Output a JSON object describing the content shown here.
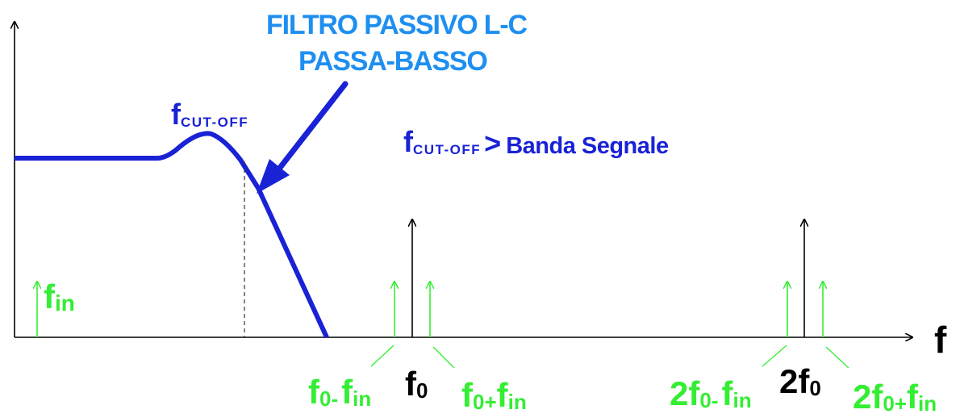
{
  "colors": {
    "axis": "#000000",
    "filter_curve": "#1a22d6",
    "title": "#1e8ff0",
    "harmonic": "#33ee33",
    "carrier": "#000000"
  },
  "title": {
    "line1": "FILTRO PASSIVO L-C",
    "line2": "PASSA-BASSO"
  },
  "axis": {
    "x_label": "f"
  },
  "cutoff_label": {
    "main": "f",
    "sub": "CUT-OFF"
  },
  "condition": {
    "main": "f",
    "sub": "CUT-OFF",
    "rel": ">",
    "text": "Banda Segnale"
  },
  "signal": {
    "main": "f",
    "sub": "in"
  },
  "spectrum_labels": {
    "f0_minus": {
      "a": "f",
      "a_sub": "0-",
      "b": "f",
      "b_sub": "in"
    },
    "f0": {
      "a": "f",
      "a_sub": "0"
    },
    "f0_plus": {
      "a": "f",
      "a_sub": "0+",
      "b": "f",
      "b_sub": "in"
    },
    "twof0_minus": {
      "a": "2f",
      "a_sub": "0-",
      "b": "f",
      "b_sub": "in"
    },
    "twof0": {
      "a": "2f",
      "a_sub": "0"
    },
    "twof0_plus": {
      "a": "2f",
      "a_sub": "0+",
      "b": "f",
      "b_sub": "in"
    }
  }
}
